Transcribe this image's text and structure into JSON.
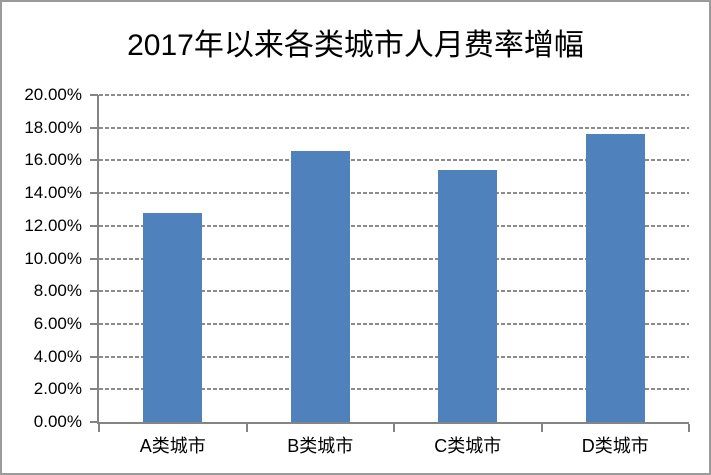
{
  "chart_data": {
    "type": "bar",
    "title": "2017年以来各类城市人月费率增幅",
    "categories": [
      "A类城市",
      "B类城市",
      "C类城市",
      "D类城市"
    ],
    "values": [
      12.8,
      16.6,
      15.4,
      17.6
    ],
    "unit": "percent",
    "xlabel": "",
    "ylabel": "",
    "ylim": [
      0,
      20
    ],
    "y_tick_step": 2,
    "y_tick_labels": [
      "0.00%",
      "2.00%",
      "4.00%",
      "6.00%",
      "8.00%",
      "10.00%",
      "12.00%",
      "14.00%",
      "16.00%",
      "18.00%",
      "20.00%"
    ],
    "grid": true,
    "gridline_style": "dashed",
    "legend": false,
    "colors": {
      "bar": "#4F81BD",
      "gridline": "#8C8C8C",
      "axis": "#848484",
      "text": "#000000",
      "border": "#9B9B9B",
      "background": "#FFFFFF"
    }
  }
}
